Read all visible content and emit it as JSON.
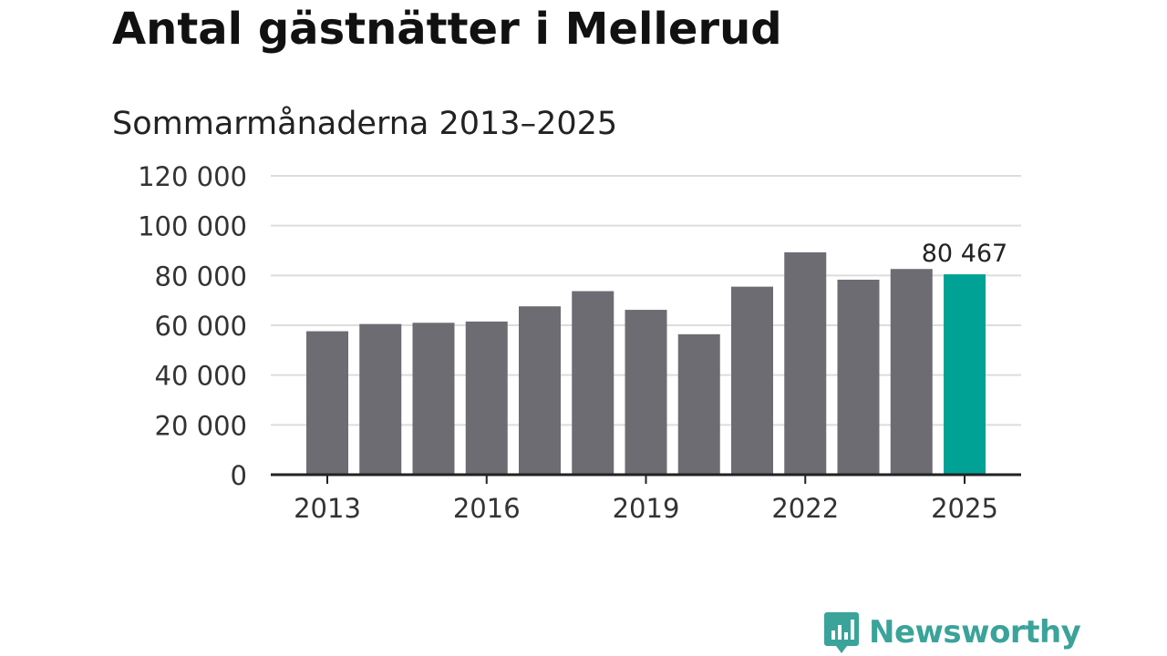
{
  "title": "Antal gästnätter i Mellerud",
  "subtitle": "Sommarmånaderna 2013–2025",
  "brand": {
    "name": "Newsworthy",
    "color": "#3aa39a"
  },
  "colors": {
    "bar": "#6d6c72",
    "highlight": "#00a295",
    "grid": "#dcdcdc",
    "axis": "#222222"
  },
  "chart_data": {
    "type": "bar",
    "title": "Antal gästnätter i Mellerud",
    "subtitle": "Sommarmånaderna 2013–2025",
    "categories": [
      "2013",
      "2014",
      "2015",
      "2016",
      "2017",
      "2018",
      "2019",
      "2020",
      "2021",
      "2022",
      "2023",
      "2024",
      "2025"
    ],
    "values": [
      57600,
      60500,
      61000,
      61500,
      67600,
      73700,
      66200,
      56400,
      75500,
      89300,
      78300,
      82600,
      80467
    ],
    "x_tick_labels": [
      "2013",
      "2016",
      "2019",
      "2022",
      "2025"
    ],
    "y_ticks": [
      0,
      20000,
      40000,
      60000,
      80000,
      100000,
      120000
    ],
    "y_tick_labels": [
      "0",
      "20 000",
      "40 000",
      "60 000",
      "80 000",
      "100 000",
      "120 000"
    ],
    "ylim": [
      0,
      120000
    ],
    "highlight_index": 12,
    "data_labels": [
      {
        "index": 12,
        "text": "80 467"
      }
    ],
    "grid": true,
    "xlabel": "",
    "ylabel": ""
  }
}
